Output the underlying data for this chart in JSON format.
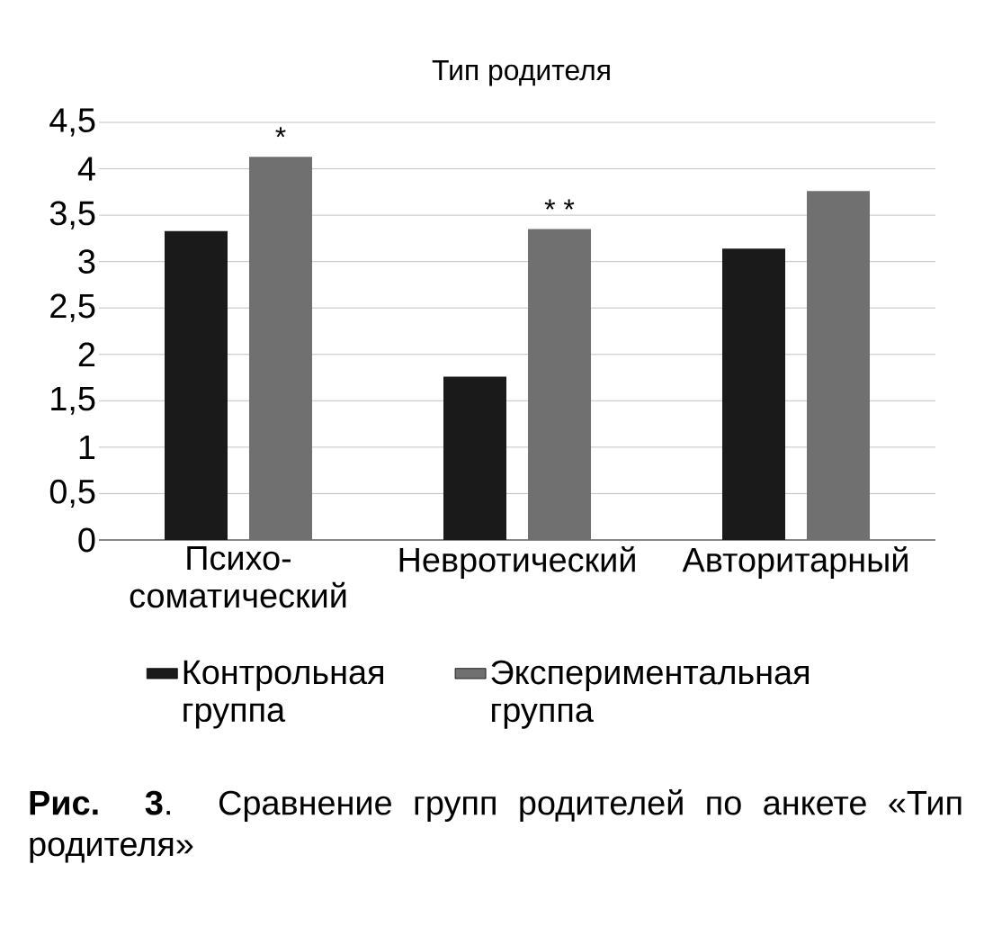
{
  "chart_data": {
    "type": "bar",
    "title": "Тип родителя",
    "categories": [
      "Психо-соматический",
      "Невротический",
      "Авторитарный"
    ],
    "series": [
      {
        "name": "Контрольная группа",
        "color": "#1a1a1a",
        "values": [
          3.33,
          1.76,
          3.14
        ]
      },
      {
        "name": "Экспериментальная группа",
        "color": "#707070",
        "values": [
          4.13,
          3.35,
          3.76
        ]
      }
    ],
    "ylim": [
      0,
      4.5
    ],
    "yticks": [
      0,
      {
        "value": 0.5,
        "label": "0,5"
      },
      1,
      {
        "value": 1.5,
        "label": "1,5"
      },
      2,
      {
        "value": 2.5,
        "label": "2,5"
      },
      3,
      {
        "value": 3.5,
        "label": "3,5"
      },
      4,
      {
        "value": 4.5,
        "label": "4,5"
      }
    ],
    "grid": "y",
    "legend": "bottom",
    "annotations": [
      "*",
      "* *",
      "**Рис. 3**. Сравнение групп родителей по анкете «Тип родителя»"
    ]
  }
}
